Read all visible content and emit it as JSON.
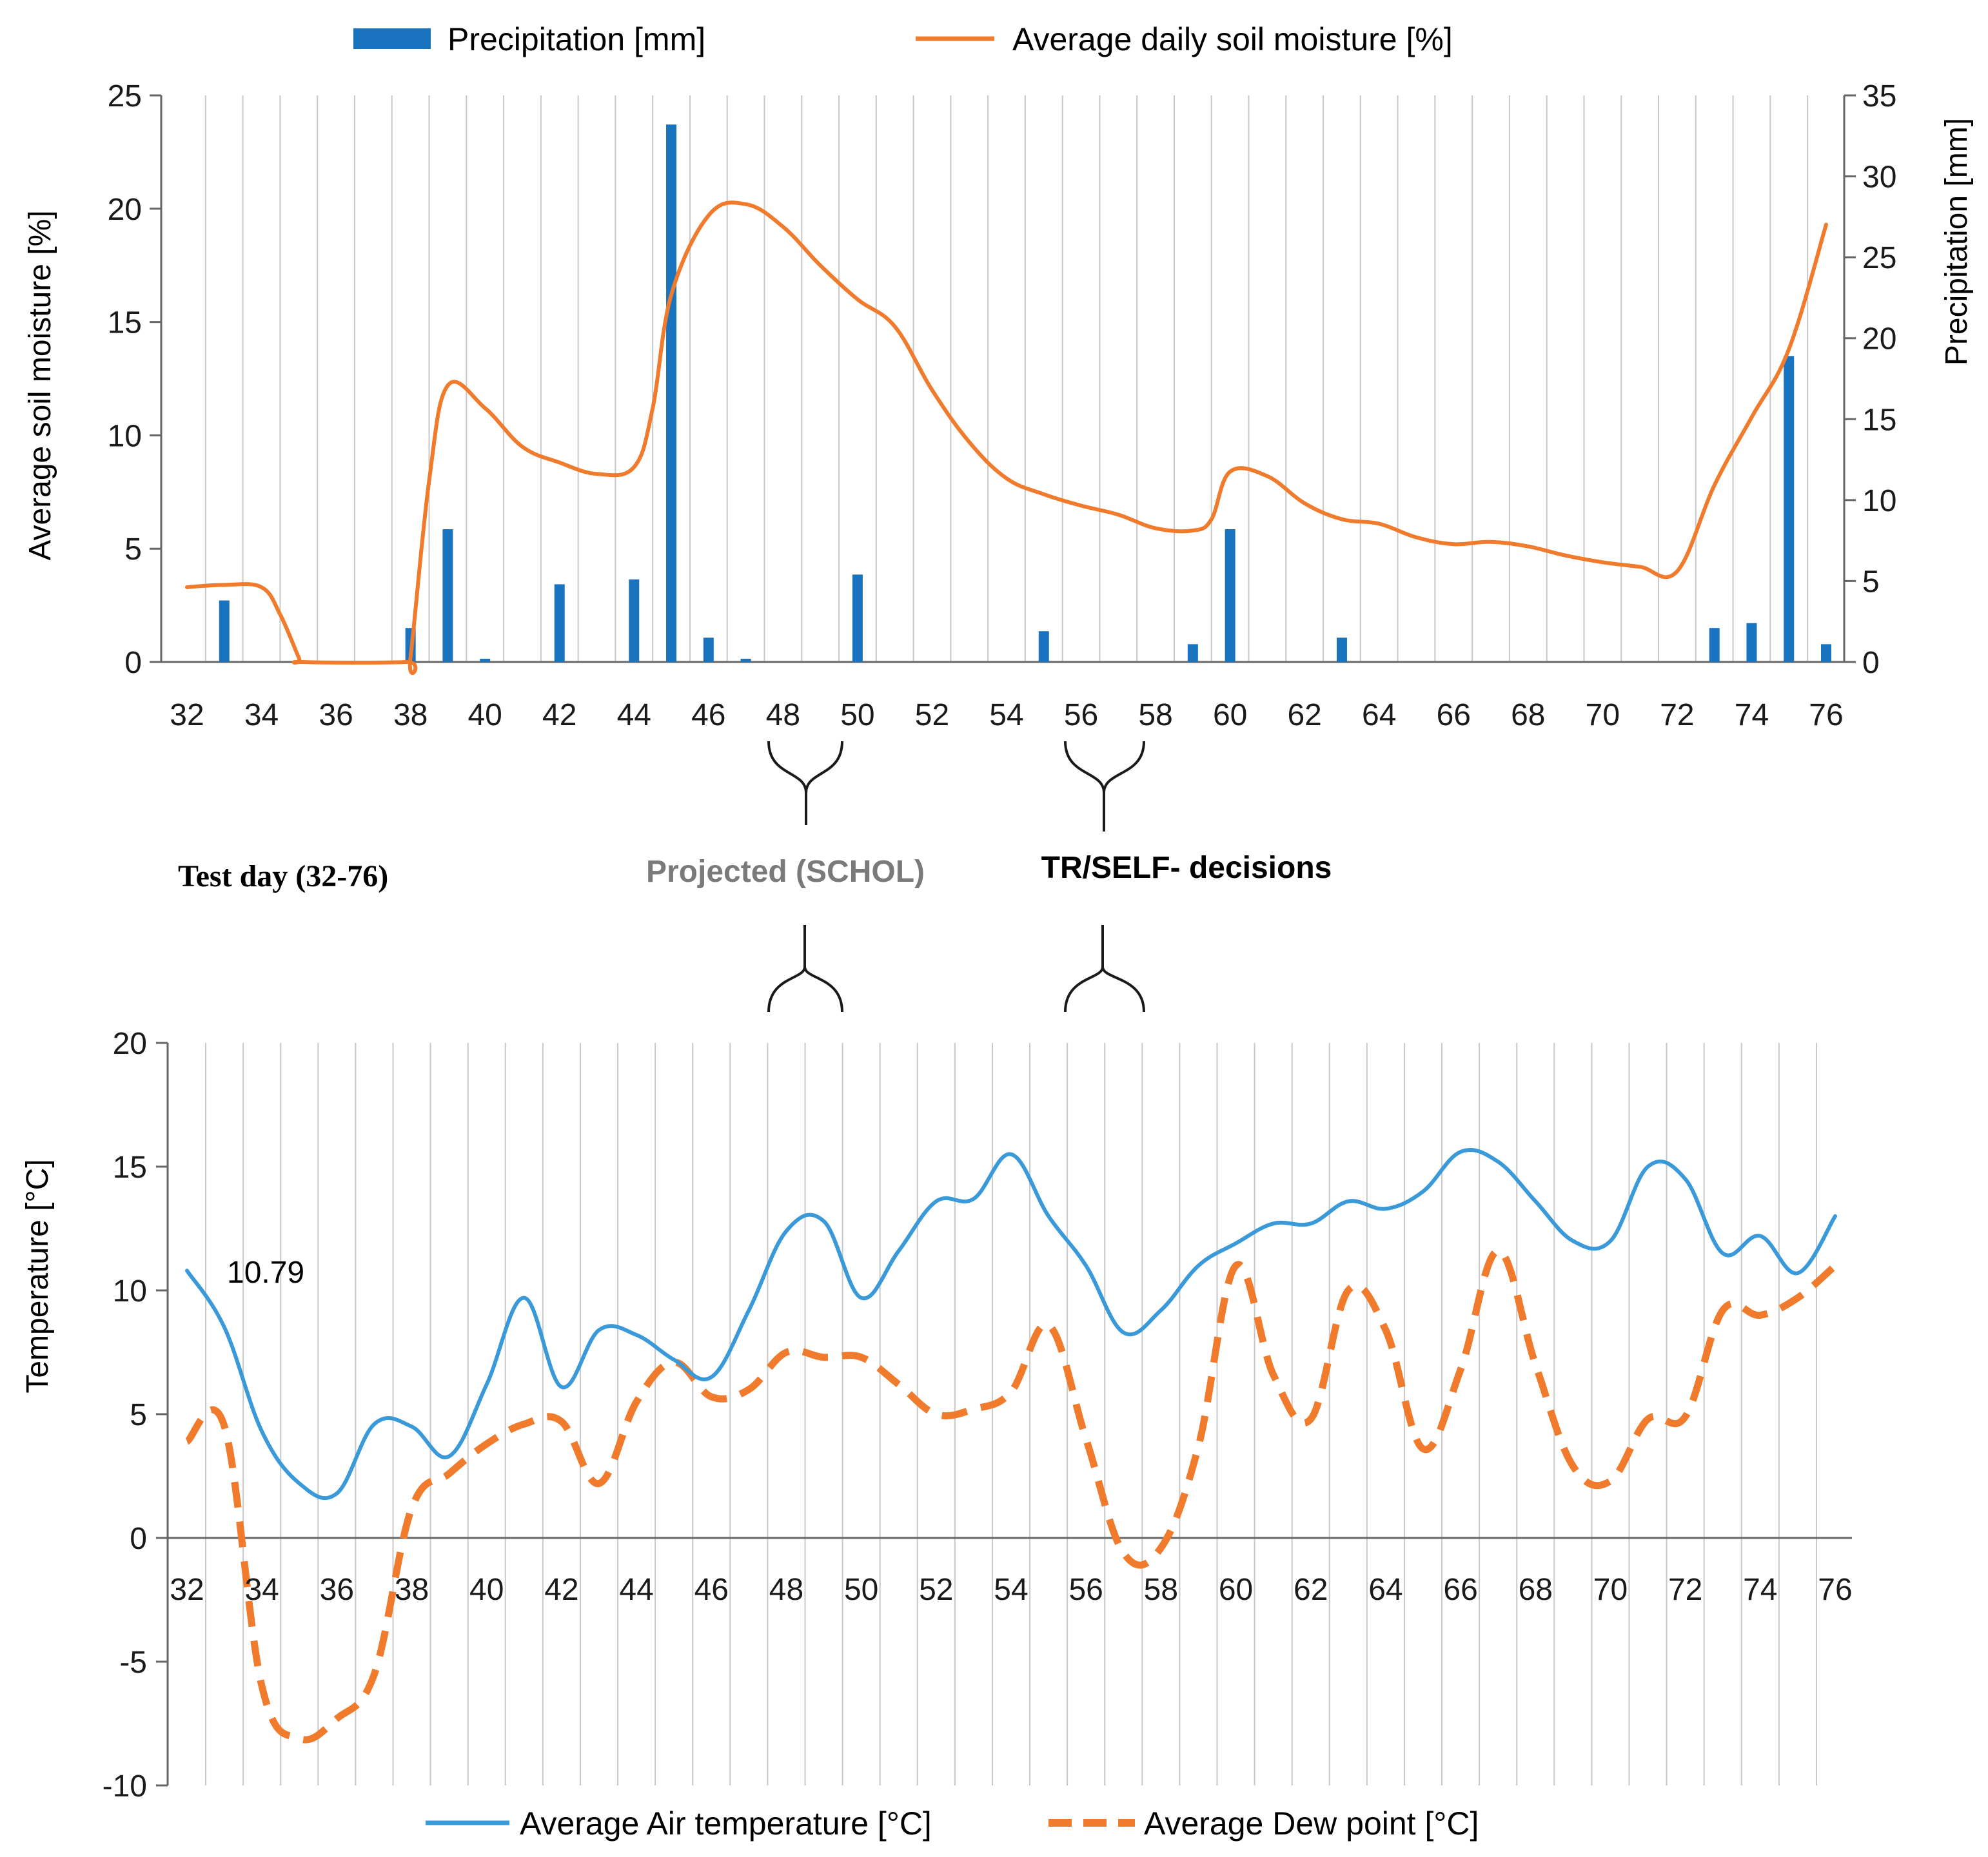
{
  "figure": {
    "middle_labels": {
      "test_day": "Test day (32-76)",
      "projected": "Projected (SCHOL)",
      "decisions": "TR/SELF- decisions"
    },
    "colors": {
      "precip": "#1a73be",
      "moisture": "#f07b2c",
      "air": "#3a9ad9",
      "dew": "#f07b2c",
      "grid": "#c8c8c8",
      "axis": "#666666",
      "text": "#1a1a1a",
      "projected_text": "#7a7a7a"
    }
  },
  "chart_data": [
    {
      "type": "bar+line",
      "name": "moisture-precipitation",
      "title": "",
      "xlabel": "",
      "ylabel_left": "Average soil moisture [%]",
      "ylabel_right": "Precipitation [mm]",
      "xlim": [
        32,
        76
      ],
      "ylim_left": [
        0,
        25
      ],
      "ylim_right": [
        0,
        35
      ],
      "yticks_left": [
        0,
        5,
        10,
        15,
        20,
        25
      ],
      "yticks_right": [
        0,
        5,
        10,
        15,
        20,
        25,
        30,
        35
      ],
      "xticks": [
        32,
        34,
        36,
        38,
        40,
        42,
        44,
        46,
        48,
        50,
        52,
        54,
        56,
        58,
        60,
        62,
        64,
        66,
        68,
        70,
        72,
        74,
        76
      ],
      "grid": "vertical",
      "legend": [
        {
          "label": "Precipitation  [mm]",
          "kind": "bar"
        },
        {
          "label": "Average daily soil moisture [%]",
          "kind": "line"
        }
      ],
      "legend_position": "top",
      "precipitation": {
        "name": "Precipitation  [mm]",
        "days": [
          33,
          38,
          39,
          40,
          42,
          44,
          45,
          46,
          47,
          50,
          55,
          59,
          60,
          63,
          73,
          74,
          75,
          76
        ],
        "values": [
          3.8,
          2.1,
          8.2,
          0.2,
          4.8,
          5.1,
          33.2,
          1.5,
          0.2,
          5.4,
          1.9,
          1.1,
          8.2,
          1.5,
          2.1,
          2.4,
          18.9,
          1.1
        ]
      },
      "soil_moisture": {
        "name": "Average daily soil moisture [%]",
        "x": [
          32,
          33,
          34,
          34.5,
          35,
          35.1,
          37.9,
          38,
          38.5,
          39,
          40,
          41,
          42,
          43,
          44,
          44.5,
          45,
          46,
          47,
          48,
          49,
          50,
          51,
          52,
          53,
          54,
          55,
          56,
          57,
          58,
          59,
          59.5,
          60,
          61,
          62,
          63,
          64,
          65,
          66,
          67,
          68,
          69,
          70,
          71,
          72,
          73,
          74,
          75,
          76
        ],
        "y": [
          3.3,
          3.4,
          3.3,
          2.1,
          0.2,
          0,
          0,
          0.2,
          8.0,
          12.2,
          11.2,
          9.5,
          8.8,
          8.3,
          8.6,
          11.2,
          16.2,
          19.7,
          20.2,
          19.2,
          17.5,
          16.0,
          14.8,
          12.0,
          9.7,
          8.1,
          7.4,
          6.9,
          6.5,
          5.9,
          5.8,
          6.3,
          8.4,
          8.2,
          7.0,
          6.3,
          6.1,
          5.5,
          5.2,
          5.3,
          5.1,
          4.7,
          4.4,
          4.2,
          4.0,
          7.8,
          10.8,
          13.8,
          19.3
        ]
      }
    },
    {
      "type": "line",
      "name": "temperature",
      "title": "",
      "xlabel": "",
      "ylabel": "Temperature  [°C]",
      "xlim": [
        32,
        76
      ],
      "ylim": [
        -10,
        20
      ],
      "yticks": [
        -10,
        -5,
        0,
        5,
        10,
        15,
        20
      ],
      "xticks": [
        32,
        34,
        36,
        38,
        40,
        42,
        44,
        46,
        48,
        50,
        52,
        54,
        56,
        58,
        60,
        62,
        64,
        66,
        68,
        70,
        72,
        74,
        76
      ],
      "grid": "vertical",
      "legend_position": "bottom",
      "annotations": [
        {
          "text": "10.79",
          "x": 34.3,
          "y": 10.8
        }
      ],
      "series": [
        {
          "name": "Average Air temperature  [°C]",
          "style": "solid",
          "x": [
            32,
            33,
            34,
            35,
            36,
            37,
            38,
            39,
            40,
            41,
            42,
            43,
            44,
            45,
            46,
            47,
            48,
            49,
            50,
            51,
            52,
            53,
            54,
            55,
            56,
            57,
            58,
            59,
            60,
            61,
            62,
            63,
            64,
            65,
            66,
            67,
            68,
            69,
            70,
            71,
            72,
            73,
            74,
            75,
            76
          ],
          "values": [
            10.8,
            8.5,
            4.3,
            2.2,
            1.8,
            4.6,
            4.5,
            3.3,
            6.2,
            9.7,
            6.1,
            8.4,
            8.2,
            7.2,
            6.5,
            9.2,
            12.4,
            12.8,
            9.7,
            11.6,
            13.6,
            13.7,
            15.5,
            13.0,
            11.0,
            8.3,
            9.2,
            11.0,
            11.9,
            12.7,
            12.7,
            13.6,
            13.3,
            14.0,
            15.6,
            15.2,
            13.6,
            12.0,
            12.0,
            15.0,
            14.5,
            11.5,
            12.2,
            10.7,
            13.0
          ]
        },
        {
          "name": "Average Dew point [°C]",
          "style": "dashed",
          "x": [
            32,
            33,
            34,
            35,
            36,
            37,
            38,
            39,
            40,
            41,
            42,
            43,
            44,
            45,
            46,
            47,
            48,
            49,
            50,
            51,
            52,
            53,
            54,
            55,
            56,
            57,
            58,
            59,
            60,
            61,
            62,
            63,
            64,
            65,
            66,
            67,
            68,
            69,
            70,
            71,
            72,
            73,
            74,
            75,
            76
          ],
          "values": [
            3.9,
            4.5,
            -6.0,
            -8.1,
            -7.3,
            -5.5,
            1.2,
            2.6,
            3.8,
            4.6,
            4.7,
            2.2,
            5.5,
            7.1,
            5.7,
            6.0,
            7.5,
            7.3,
            7.3,
            6.2,
            5.0,
            5.2,
            5.9,
            8.6,
            4.0,
            -0.6,
            -0.4,
            3.7,
            11.0,
            6.6,
            4.8,
            10.0,
            8.4,
            3.6,
            6.8,
            11.6,
            7.0,
            2.9,
            2.3,
            4.8,
            4.9,
            9.2,
            9.0,
            9.7,
            11.0
          ]
        }
      ]
    }
  ]
}
